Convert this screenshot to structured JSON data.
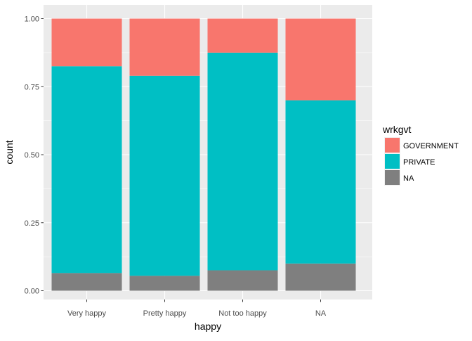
{
  "chart_data": {
    "type": "bar",
    "stacked": "fill",
    "categories": [
      "Very happy",
      "Pretty happy",
      "Not too happy",
      "NA"
    ],
    "series": [
      {
        "name": "GOVERNMENT",
        "color": "#F8766D",
        "values": [
          0.175,
          0.21,
          0.125,
          0.3
        ]
      },
      {
        "name": "PRIVATE",
        "color": "#00BFC4",
        "values": [
          0.76,
          0.735,
          0.8,
          0.6
        ]
      },
      {
        "name": "NA",
        "color": "#7F7F7F",
        "values": [
          0.065,
          0.055,
          0.075,
          0.1
        ]
      }
    ],
    "stack_order_bottom_to_top": [
      "NA",
      "PRIVATE",
      "GOVERNMENT"
    ],
    "xlabel": "happy",
    "ylabel": "count",
    "ylim": [
      0,
      1
    ],
    "yticks": [
      0,
      0.25,
      0.5,
      0.75,
      1
    ],
    "ytick_labels": [
      "0.00",
      "0.25",
      "0.50",
      "0.75",
      "1.00"
    ],
    "grid": true,
    "legend": {
      "title": "wrkgvt",
      "position": "right"
    },
    "panel_background": "#EBEBEB",
    "grid_color": "#FFFFFF"
  }
}
